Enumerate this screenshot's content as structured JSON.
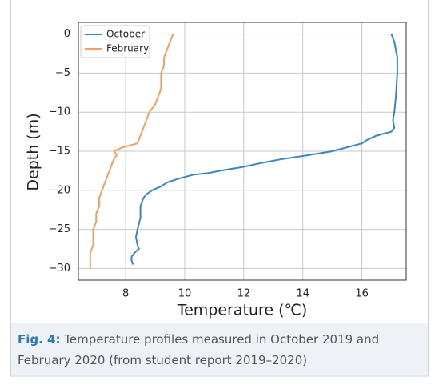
{
  "chart_data": {
    "type": "line",
    "xlabel": "Temperature (℃)",
    "ylabel": "Depth (m)",
    "xlim": [
      6.4,
      17.5
    ],
    "ylim": [
      -31.5,
      1.5
    ],
    "xticks": [
      8,
      10,
      12,
      14,
      16
    ],
    "yticks": [
      0,
      {
        "value": -5,
        "label": "−5"
      },
      {
        "value": -10,
        "label": "−10"
      },
      {
        "value": -15,
        "label": "−15"
      },
      {
        "value": -20,
        "label": "−20"
      },
      {
        "value": -25,
        "label": "−25"
      },
      {
        "value": -30,
        "label": "−30"
      }
    ],
    "grid": true,
    "legend": "upper left",
    "series": [
      {
        "name": "October",
        "color": "#3a86c0",
        "x": [
          17.0,
          17.1,
          17.2,
          17.2,
          17.15,
          17.1,
          17.05,
          17.1,
          17.0,
          16.5,
          16.2,
          16.0,
          15.5,
          15.0,
          14.2,
          13.3,
          12.6,
          12.0,
          11.2,
          10.8,
          10.3,
          9.8,
          9.4,
          9.2,
          8.9,
          8.7,
          8.6,
          8.5,
          8.5,
          8.4,
          8.35,
          8.4,
          8.45,
          8.3,
          8.2,
          8.2,
          8.25
        ],
        "values": [
          0,
          -1,
          -3,
          -5,
          -8,
          -10,
          -11,
          -12,
          -12.5,
          -13,
          -13.5,
          -14,
          -14.5,
          -15,
          -15.5,
          -16,
          -16.5,
          -17,
          -17.5,
          -17.8,
          -18,
          -18.5,
          -19,
          -19.5,
          -20,
          -20.5,
          -21,
          -22,
          -23.5,
          -25,
          -26,
          -27,
          -27.5,
          -28,
          -28.5,
          -29,
          -29.5
        ]
      },
      {
        "name": "February",
        "color": "#f0a060",
        "x": [
          9.6,
          9.5,
          9.4,
          9.3,
          9.3,
          9.2,
          9.2,
          9.2,
          9.1,
          9.0,
          8.9,
          8.8,
          8.7,
          8.6,
          8.5,
          8.4,
          7.9,
          7.6,
          7.7,
          7.6,
          7.5,
          7.4,
          7.3,
          7.2,
          7.1,
          7.1,
          7.0,
          7.0,
          6.9,
          6.9,
          6.9,
          6.8,
          6.8,
          6.8
        ],
        "values": [
          0,
          -1,
          -2,
          -3,
          -4,
          -5,
          -6,
          -7,
          -8,
          -9,
          -9.5,
          -10,
          -11,
          -12,
          -13,
          -14,
          -14.5,
          -15,
          -15.5,
          -16,
          -17,
          -18,
          -19,
          -20,
          -21,
          -22,
          -23,
          -24,
          -25,
          -26,
          -27,
          -28,
          -29,
          -30
        ]
      }
    ]
  },
  "caption": {
    "label": "Fig. 4:",
    "text": "Temperature profiles measured in October 2019 and February 2020 (from student report 2019–2020)"
  }
}
